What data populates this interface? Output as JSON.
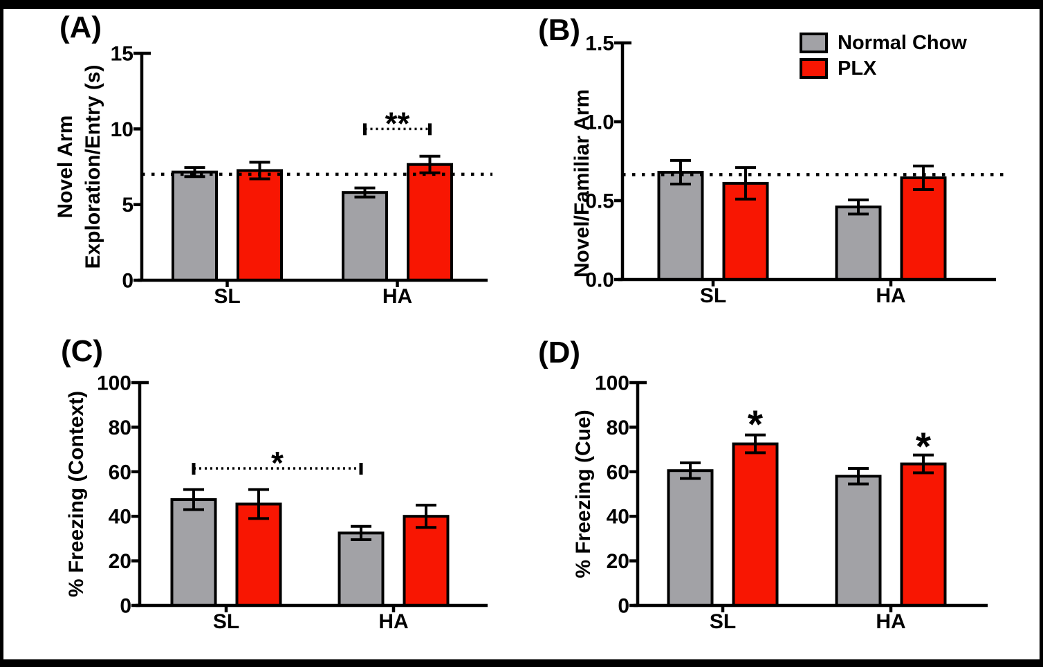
{
  "figure": {
    "background": "#ffffff",
    "frame_color": "#000000"
  },
  "colors": {
    "normal_chow": "#a2a2a6",
    "plx": "#f81602",
    "bar_border": "#000000",
    "axis": "#000000",
    "text": "#000000"
  },
  "legend": {
    "position": "top-right-of-panel-B",
    "items": [
      {
        "label": "Normal Chow",
        "color": "#a2a2a6"
      },
      {
        "label": "PLX",
        "color": "#f81602"
      }
    ]
  },
  "chart_data": [
    {
      "panel": "(A)",
      "type": "bar",
      "ylabel_lines": [
        "Novel Arm",
        "Exploration/Entry (s)"
      ],
      "ylim": [
        0,
        15
      ],
      "yticks": [
        "0",
        "5",
        "10",
        "15"
      ],
      "categories": [
        "SL",
        "HA"
      ],
      "series": [
        {
          "name": "Normal Chow",
          "values": [
            7.15,
            5.8
          ],
          "errors": [
            0.3,
            0.3
          ]
        },
        {
          "name": "PLX",
          "values": [
            7.25,
            7.65
          ],
          "errors": [
            0.55,
            0.55
          ]
        }
      ],
      "reference_line": 7.0,
      "annotations": [
        {
          "kind": "bracket",
          "label": "**",
          "value": 10,
          "from": {
            "category": "HA",
            "series": "Normal Chow"
          },
          "to": {
            "category": "HA",
            "series": "PLX"
          }
        }
      ]
    },
    {
      "panel": "(B)",
      "type": "bar",
      "ylabel_lines": [
        "Novel/Familiar Arm"
      ],
      "ylim": [
        0,
        1.5
      ],
      "yticks": [
        "0.0",
        "0.5",
        "1.0",
        "1.5"
      ],
      "categories": [
        "SL",
        "HA"
      ],
      "series": [
        {
          "name": "Normal Chow",
          "values": [
            0.68,
            0.46
          ],
          "errors": [
            0.075,
            0.045
          ]
        },
        {
          "name": "PLX",
          "values": [
            0.61,
            0.645
          ],
          "errors": [
            0.1,
            0.075
          ]
        }
      ],
      "reference_line": 0.665,
      "show_legend": true,
      "annotations": []
    },
    {
      "panel": "(C)",
      "type": "bar",
      "ylabel_lines": [
        "% Freezing (Context)"
      ],
      "ylim": [
        0,
        100
      ],
      "yticks": [
        "0",
        "20",
        "40",
        "60",
        "80",
        "100"
      ],
      "categories": [
        "SL",
        "HA"
      ],
      "series": [
        {
          "name": "Normal Chow",
          "values": [
            47.5,
            32.5
          ],
          "errors": [
            4.5,
            3
          ]
        },
        {
          "name": "PLX",
          "values": [
            45.5,
            40
          ],
          "errors": [
            6.5,
            5
          ]
        }
      ],
      "reference_line": null,
      "annotations": [
        {
          "kind": "bracket",
          "label": "*",
          "value": 61.5,
          "from": {
            "category": "SL",
            "series": "Normal Chow"
          },
          "to": {
            "category": "HA",
            "series": "Normal Chow"
          }
        }
      ]
    },
    {
      "panel": "(D)",
      "type": "bar",
      "ylabel_lines": [
        "% Freezing (Cue)"
      ],
      "ylim": [
        0,
        100
      ],
      "yticks": [
        "0",
        "20",
        "40",
        "60",
        "80",
        "100"
      ],
      "categories": [
        "SL",
        "HA"
      ],
      "series": [
        {
          "name": "Normal Chow",
          "values": [
            60.5,
            58
          ],
          "errors": [
            3.5,
            3.5
          ]
        },
        {
          "name": "PLX",
          "values": [
            72.5,
            63.5
          ],
          "errors": [
            4,
            4
          ]
        }
      ],
      "reference_line": null,
      "annotations": [
        {
          "kind": "star",
          "label": "*",
          "value": 85,
          "at": {
            "category": "SL",
            "series": "PLX"
          }
        },
        {
          "kind": "star",
          "label": "*",
          "value": 75,
          "at": {
            "category": "HA",
            "series": "PLX"
          }
        }
      ]
    }
  ]
}
